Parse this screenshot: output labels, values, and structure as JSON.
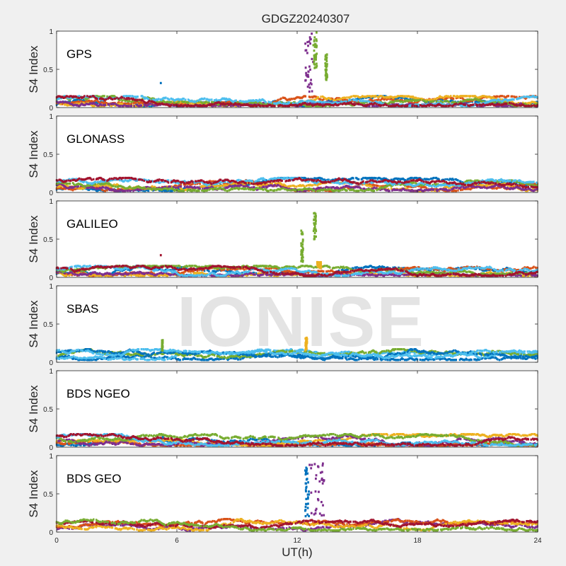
{
  "figure": {
    "title": "GDGZ20240307",
    "watermark": "IONISE",
    "xlabel": "UT(h)",
    "ylabel": "S4 Index"
  },
  "chart_data": [
    {
      "type": "scatter",
      "panel_label": "GPS",
      "xlim": [
        0,
        24
      ],
      "ylim": [
        0,
        1
      ],
      "xticks": [
        0,
        6,
        12,
        18,
        24
      ],
      "yticks": [
        0,
        0.5,
        1
      ],
      "ytick_labels": [
        "0",
        "0.5",
        "1"
      ],
      "xlabel": "",
      "ylabel": "S4 Index",
      "baseline": [
        0.04,
        0.12
      ],
      "colors": [
        "#0072BD",
        "#D95319",
        "#EDB120",
        "#7E2F8E",
        "#77AC30",
        "#4DBEEE",
        "#A2142F"
      ],
      "bursts": [
        {
          "x_range": [
            12.4,
            12.8
          ],
          "y_range": [
            0.2,
            1.0
          ],
          "color": "#7E2F8E"
        },
        {
          "x_range": [
            12.8,
            13.0
          ],
          "y_range": [
            0.5,
            1.0
          ],
          "color": "#77AC30"
        },
        {
          "x_range": [
            13.4,
            13.5
          ],
          "y_range": [
            0.35,
            0.7
          ],
          "color": "#77AC30"
        }
      ],
      "outliers": [
        {
          "x": 5.2,
          "y": 0.32,
          "color": "#0072BD"
        }
      ]
    },
    {
      "type": "scatter",
      "panel_label": "GLONASS",
      "xlim": [
        0,
        24
      ],
      "ylim": [
        0,
        1
      ],
      "xticks": [
        0,
        6,
        12,
        18,
        24
      ],
      "yticks": [
        0,
        0.5,
        1
      ],
      "ytick_labels": [
        "0",
        "0.5",
        "1"
      ],
      "xlabel": "",
      "ylabel": "S4 Index",
      "baseline": [
        0.04,
        0.16
      ],
      "colors": [
        "#0072BD",
        "#D95319",
        "#EDB120",
        "#7E2F8E",
        "#77AC30",
        "#4DBEEE",
        "#A2142F"
      ],
      "bursts": [],
      "outliers": []
    },
    {
      "type": "scatter",
      "panel_label": "GALILEO",
      "xlim": [
        0,
        24
      ],
      "ylim": [
        0,
        1
      ],
      "xticks": [
        0,
        6,
        12,
        18,
        24
      ],
      "yticks": [
        0,
        0.5,
        1
      ],
      "ytick_labels": [
        "0",
        "0.5",
        "1"
      ],
      "xlabel": "",
      "ylabel": "S4 Index",
      "baseline": [
        0.04,
        0.12
      ],
      "colors": [
        "#0072BD",
        "#D95319",
        "#EDB120",
        "#7E2F8E",
        "#77AC30",
        "#4DBEEE",
        "#A2142F"
      ],
      "bursts": [
        {
          "x_range": [
            12.2,
            12.3
          ],
          "y_range": [
            0.2,
            0.65
          ],
          "color": "#77AC30"
        },
        {
          "x_range": [
            12.8,
            12.95
          ],
          "y_range": [
            0.5,
            0.85
          ],
          "color": "#77AC30"
        },
        {
          "x_range": [
            13.0,
            13.2
          ],
          "y_range": [
            0.12,
            0.2
          ],
          "color": "#EDB120"
        }
      ],
      "outliers": [
        {
          "x": 5.2,
          "y": 0.29,
          "color": "#A2142F"
        }
      ]
    },
    {
      "type": "scatter",
      "panel_label": "SBAS",
      "xlim": [
        0,
        24
      ],
      "ylim": [
        0,
        1
      ],
      "xticks": [
        0,
        6,
        12,
        18,
        24
      ],
      "yticks": [
        0,
        0.5,
        1
      ],
      "ytick_labels": [
        "0",
        "0.5",
        "1"
      ],
      "xlabel": "",
      "ylabel": "S4 Index",
      "baseline": [
        0.05,
        0.14
      ],
      "colors": [
        "#0072BD",
        "#4DBEEE",
        "#77AC30",
        "#0072BD",
        "#4DBEEE"
      ],
      "bursts": [
        {
          "x_range": [
            5.25,
            5.3
          ],
          "y_range": [
            0.15,
            0.3
          ],
          "color": "#77AC30"
        },
        {
          "x_range": [
            12.4,
            12.5
          ],
          "y_range": [
            0.15,
            0.32
          ],
          "color": "#EDB120"
        }
      ],
      "outliers": []
    },
    {
      "type": "scatter",
      "panel_label": "BDS NGEO",
      "xlim": [
        0,
        24
      ],
      "ylim": [
        0,
        1
      ],
      "xticks": [
        0,
        6,
        12,
        18,
        24
      ],
      "yticks": [
        0,
        0.5,
        1
      ],
      "ytick_labels": [
        "0",
        "0.5",
        "1"
      ],
      "xlabel": "",
      "ylabel": "S4 Index",
      "baseline": [
        0.04,
        0.14
      ],
      "colors": [
        "#0072BD",
        "#D95319",
        "#EDB120",
        "#7E2F8E",
        "#77AC30",
        "#4DBEEE",
        "#A2142F"
      ],
      "bursts": [],
      "outliers": [
        {
          "x": 5.3,
          "y": 0.13,
          "color": "#0072BD"
        }
      ]
    },
    {
      "type": "scatter",
      "panel_label": "BDS GEO",
      "xlim": [
        0,
        24
      ],
      "ylim": [
        0,
        1
      ],
      "xticks": [
        0,
        6,
        12,
        18,
        24
      ],
      "yticks": [
        0,
        0.5,
        1
      ],
      "ytick_labels": [
        "0",
        "0.5",
        "1"
      ],
      "xlabel": "UT(h)",
      "ylabel": "S4 Index",
      "xtick_labels": [
        "0",
        "6",
        "12",
        "18",
        "24"
      ],
      "baseline": [
        0.04,
        0.14
      ],
      "colors": [
        "#7E2F8E",
        "#D95319",
        "#EDB120",
        "#A2142F",
        "#77AC30"
      ],
      "bursts": [
        {
          "x_range": [
            12.4,
            12.6
          ],
          "y_range": [
            0.2,
            0.85
          ],
          "color": "#0072BD"
        },
        {
          "x_range": [
            12.6,
            13.4
          ],
          "y_range": [
            0.2,
            0.9
          ],
          "color": "#7E2F8E"
        }
      ],
      "outliers": []
    }
  ]
}
